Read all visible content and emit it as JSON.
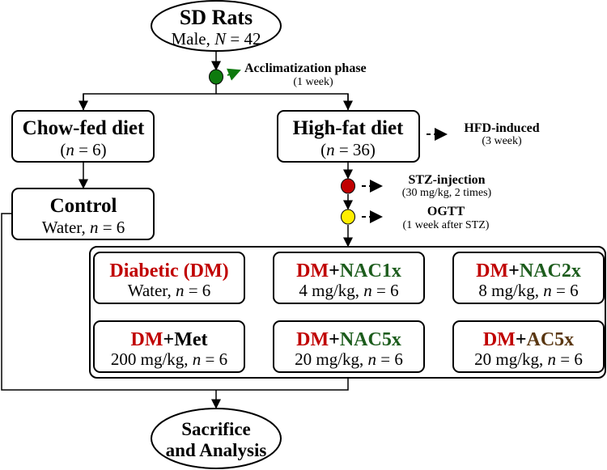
{
  "colors": {
    "dm_red": "#c00000",
    "nac_green": "#1c5c1c",
    "ac_brown": "#5a3712",
    "acclim_dot": "#0e7a0e",
    "stz_dot": "#c00000",
    "ogtt_dot": "#ffee00"
  },
  "start": {
    "title": "SD Rats",
    "sub_prefix": "Male, ",
    "sub_var": "N",
    "sub_suffix": " = 42"
  },
  "acclimatization": {
    "label": "Acclimatization phase",
    "duration": "(1 week)"
  },
  "chow": {
    "title": "Chow-fed diet",
    "open": "(",
    "var": "n",
    "suffix": " = 6)"
  },
  "highfat": {
    "title": "High-fat diet",
    "open": "(",
    "var": "n",
    "suffix": " = 36)"
  },
  "hfd_induced": {
    "label": "HFD-induced",
    "duration": "(3 week)"
  },
  "stz": {
    "label": "STZ-injection",
    "detail": "(30 mg/kg, 2 times)"
  },
  "ogtt": {
    "label": "OGTT",
    "detail": "(1 week after STZ)"
  },
  "control": {
    "title": "Control",
    "sub_prefix": "Water, ",
    "var": "n",
    "suffix": " = 6"
  },
  "groups": [
    {
      "a": "Diabetic (DM)",
      "b": "",
      "sub_prefix": "Water, ",
      "var": "n",
      "suffix": " = 6"
    },
    {
      "a": "DM",
      "plus": "+",
      "b": "NAC1x",
      "sub_prefix": "4 mg/kg, ",
      "var": "n",
      "suffix": " = 6"
    },
    {
      "a": "DM",
      "plus": "+",
      "b": "NAC2x",
      "sub_prefix": "8 mg/kg, ",
      "var": "n",
      "suffix": " = 6"
    },
    {
      "a": "DM",
      "plus": "+",
      "b": "Met",
      "sub_prefix": "200 mg/kg, ",
      "var": "n",
      "suffix": " = 6"
    },
    {
      "a": "DM",
      "plus": "+",
      "b": "NAC5x",
      "sub_prefix": "20 mg/kg, ",
      "var": "n",
      "suffix": " = 6"
    },
    {
      "a": "DM",
      "plus": "+",
      "b": "AC5x",
      "sub_prefix": "20 mg/kg, ",
      "var": "n",
      "suffix": " = 6"
    }
  ],
  "end": {
    "line1": "Sacrifice",
    "line2": "and Analysis"
  }
}
